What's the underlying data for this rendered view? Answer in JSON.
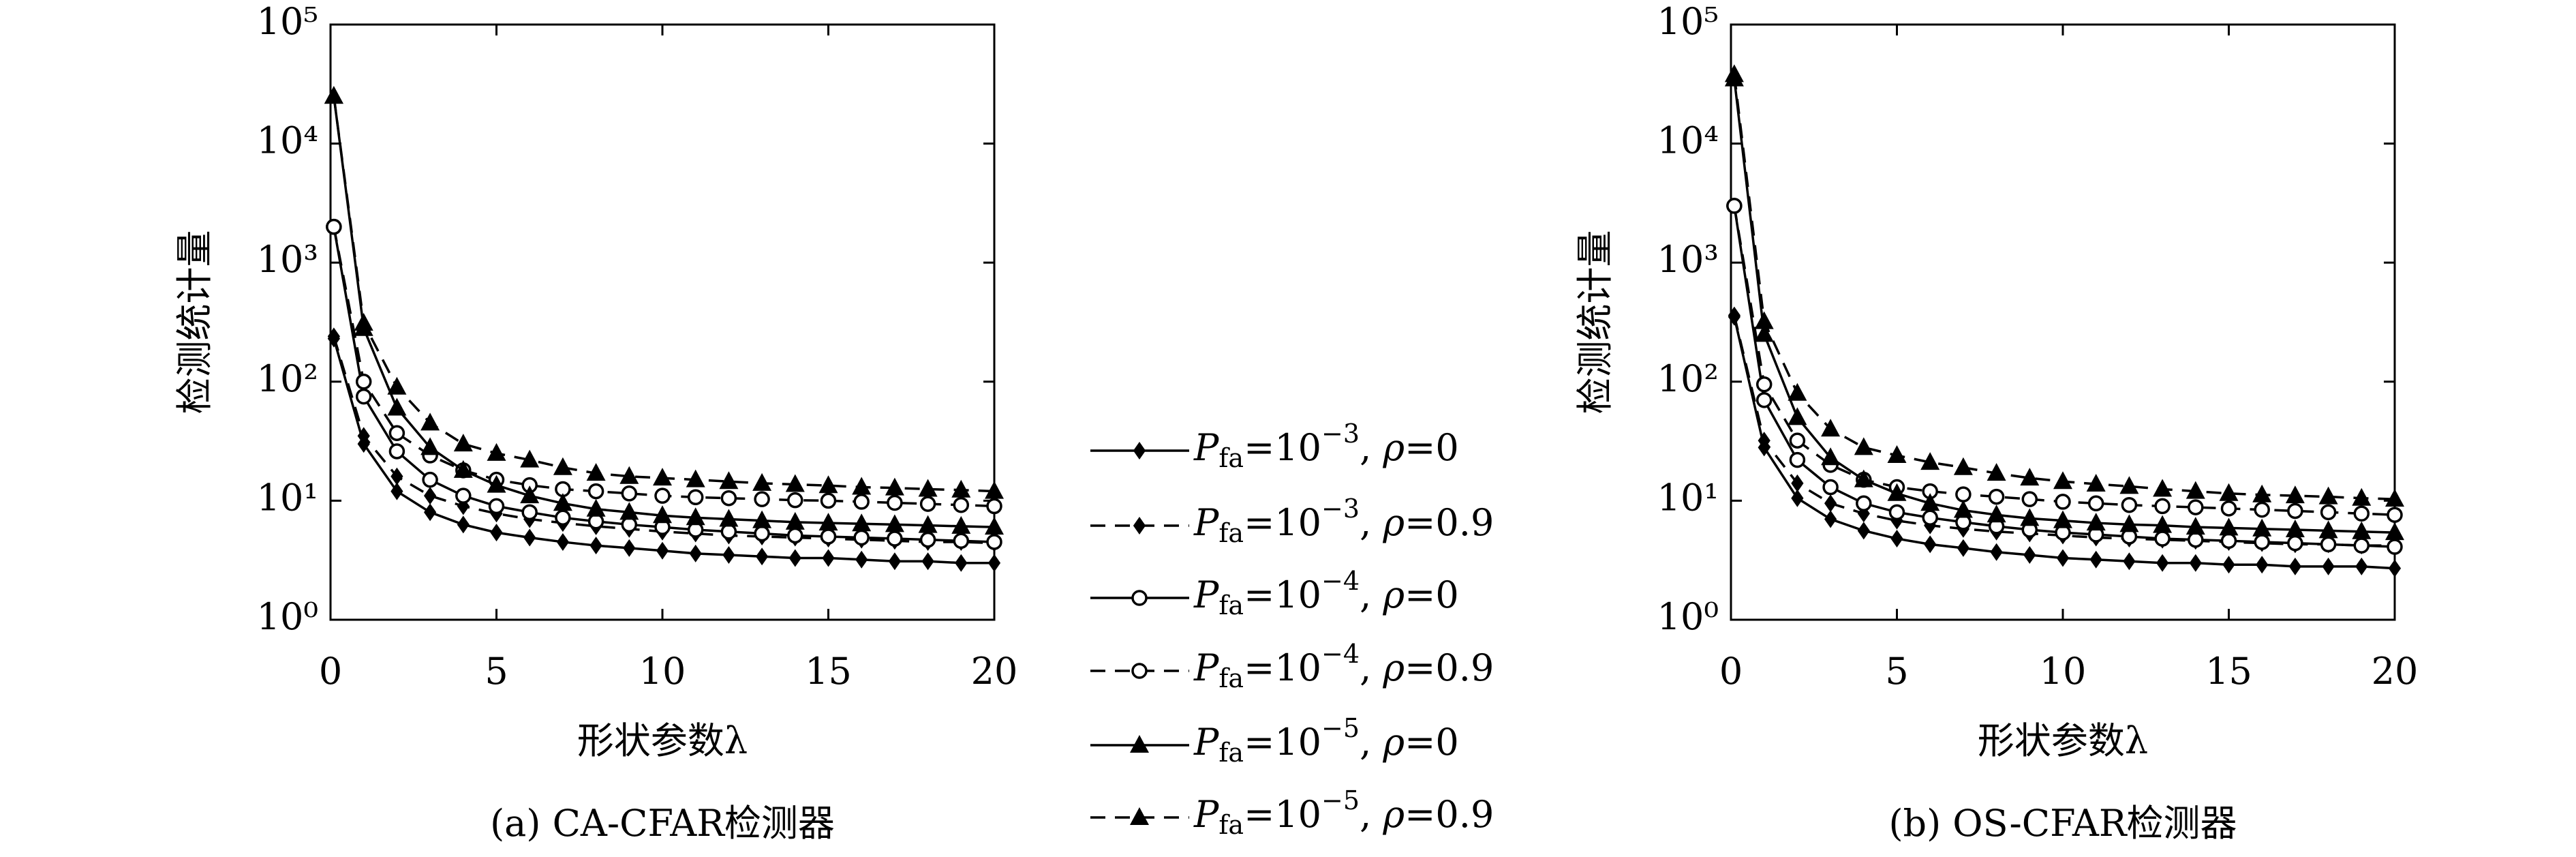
{
  "chart_data": [
    {
      "type": "line",
      "title": "(a) CA-CFAR检测器",
      "xlabel": "形状参数λ",
      "ylabel": "检测统计量",
      "x": [
        0.1,
        1,
        2,
        3,
        4,
        5,
        6,
        7,
        8,
        9,
        10,
        11,
        12,
        13,
        14,
        15,
        16,
        17,
        18,
        19,
        20
      ],
      "xlim": [
        0,
        20
      ],
      "xticks": [
        0,
        5,
        10,
        15,
        20
      ],
      "ylim": [
        1,
        100000
      ],
      "log_y": true,
      "yticks": [
        {
          "value": 1,
          "label": "10⁰"
        },
        {
          "value": 10,
          "label": "10¹"
        },
        {
          "value": 100,
          "label": "10²"
        },
        {
          "value": 1000,
          "label": "10³"
        },
        {
          "value": 10000,
          "label": "10⁴"
        },
        {
          "value": 100000,
          "label": "10⁵"
        }
      ],
      "legend": "right",
      "series": [
        {
          "name": "Pfa=10−3, ρ=0",
          "color": "#000000",
          "marker": "diamond",
          "dashed": false,
          "values": [
            230,
            30,
            12,
            8,
            6.3,
            5.4,
            4.9,
            4.5,
            4.2,
            4.0,
            3.8,
            3.6,
            3.5,
            3.4,
            3.3,
            3.3,
            3.2,
            3.1,
            3.1,
            3.0,
            3.0
          ]
        },
        {
          "name": "Pfa=10−3, ρ=0.9",
          "color": "#000000",
          "marker": "diamond",
          "dashed": true,
          "values": [
            240,
            35,
            16,
            11,
            9,
            7.8,
            7,
            6.5,
            6.1,
            5.8,
            5.5,
            5.3,
            5.1,
            5.0,
            4.9,
            4.8,
            4.7,
            4.6,
            4.5,
            4.5,
            4.4
          ]
        },
        {
          "name": "Pfa=10−4, ρ=0",
          "color": "#000000",
          "marker": "circle",
          "dashed": false,
          "values": [
            2000,
            75,
            26,
            15,
            11,
            9,
            8,
            7.2,
            6.7,
            6.3,
            6.0,
            5.7,
            5.5,
            5.3,
            5.1,
            5.0,
            4.9,
            4.8,
            4.7,
            4.6,
            4.5
          ]
        },
        {
          "name": "Pfa=10−4, ρ=0.9",
          "color": "#000000",
          "marker": "circle",
          "dashed": true,
          "values": [
            2000,
            100,
            37,
            24,
            18,
            15,
            13.5,
            12.5,
            12,
            11.5,
            11,
            10.7,
            10.5,
            10.3,
            10.1,
            10,
            9.8,
            9.6,
            9.4,
            9.2,
            9
          ]
        },
        {
          "name": "Pfa=10−5, ρ=0",
          "color": "#000000",
          "marker": "triangle",
          "dashed": false,
          "values": [
            25000,
            280,
            60,
            28,
            18,
            13.5,
            11,
            9.5,
            8.5,
            8,
            7.5,
            7.2,
            7,
            6.8,
            6.6,
            6.5,
            6.4,
            6.3,
            6.2,
            6.1,
            6
          ]
        },
        {
          "name": "Pfa=10−5, ρ=0.9",
          "color": "#000000",
          "marker": "triangle",
          "dashed": true,
          "values": [
            25000,
            310,
            90,
            45,
            30,
            25,
            22,
            19,
            17,
            16,
            15.5,
            15,
            14.5,
            14,
            13.7,
            13.4,
            13,
            12.8,
            12.5,
            12.3,
            12
          ]
        }
      ]
    },
    {
      "type": "line",
      "title": "(b) OS-CFAR检测器",
      "xlabel": "形状参数λ",
      "ylabel": "检测统计量",
      "x": [
        0.1,
        1,
        2,
        3,
        4,
        5,
        6,
        7,
        8,
        9,
        10,
        11,
        12,
        13,
        14,
        15,
        16,
        17,
        18,
        19,
        20
      ],
      "xlim": [
        0,
        20
      ],
      "xticks": [
        0,
        5,
        10,
        15,
        20
      ],
      "ylim": [
        1,
        100000
      ],
      "log_y": true,
      "yticks": [
        {
          "value": 1,
          "label": "10⁰"
        },
        {
          "value": 10,
          "label": "10¹"
        },
        {
          "value": 100,
          "label": "10²"
        },
        {
          "value": 1000,
          "label": "10³"
        },
        {
          "value": 10000,
          "label": "10⁴"
        },
        {
          "value": 100000,
          "label": "10⁵"
        }
      ],
      "series": [
        {
          "color": "#000000",
          "marker": "diamond",
          "dashed": false,
          "values": [
            350,
            28,
            10.5,
            7,
            5.6,
            4.8,
            4.3,
            4.0,
            3.7,
            3.5,
            3.3,
            3.2,
            3.1,
            3.0,
            3.0,
            2.9,
            2.9,
            2.8,
            2.8,
            2.8,
            2.7
          ]
        },
        {
          "color": "#000000",
          "marker": "diamond",
          "dashed": true,
          "values": [
            360,
            32,
            14,
            9.5,
            7.8,
            6.8,
            6.2,
            5.8,
            5.5,
            5.3,
            5.1,
            4.9,
            4.8,
            4.7,
            4.6,
            4.5,
            4.4,
            4.3,
            4.3,
            4.2,
            4.2
          ]
        },
        {
          "color": "#000000",
          "marker": "circle",
          "dashed": false,
          "values": [
            3000,
            70,
            22,
            13,
            9.5,
            8,
            7.2,
            6.6,
            6.1,
            5.7,
            5.4,
            5.2,
            5.0,
            4.8,
            4.7,
            4.6,
            4.5,
            4.4,
            4.3,
            4.2,
            4.1
          ]
        },
        {
          "color": "#000000",
          "marker": "circle",
          "dashed": true,
          "values": [
            3000,
            95,
            32,
            20,
            15,
            13,
            12,
            11.3,
            10.8,
            10.3,
            9.8,
            9.5,
            9.2,
            9.0,
            8.8,
            8.6,
            8.4,
            8.2,
            8.0,
            7.8,
            7.6
          ]
        },
        {
          "color": "#000000",
          "marker": "triangle",
          "dashed": false,
          "values": [
            35000,
            250,
            50,
            23,
            15,
            11.5,
            9.5,
            8.3,
            7.6,
            7.1,
            6.8,
            6.5,
            6.3,
            6.2,
            6.0,
            5.9,
            5.8,
            5.7,
            5.6,
            5.5,
            5.4
          ]
        },
        {
          "color": "#000000",
          "marker": "triangle",
          "dashed": true,
          "values": [
            38000,
            320,
            80,
            40,
            28,
            24,
            21,
            19,
            17,
            15.5,
            14.5,
            13.8,
            13.2,
            12.5,
            12,
            11.5,
            11.2,
            11,
            10.8,
            10.5,
            10.3
          ]
        }
      ]
    }
  ]
}
